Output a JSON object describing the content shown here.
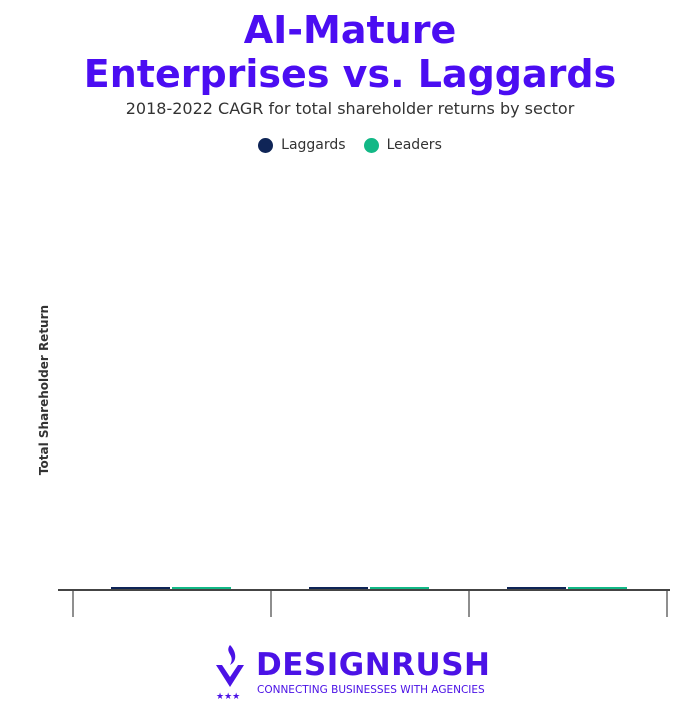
{
  "chart_data": {
    "type": "bar",
    "title_line1": "AI-Mature",
    "title_line2": "Enterprises vs. Laggards",
    "subtitle": "2018-2022 CAGR for total shareholder returns by sector",
    "ylabel": "Total Shareholder Return",
    "xlabel": "",
    "categories": [
      "",
      "",
      ""
    ],
    "series": [
      {
        "name": "Laggards",
        "color": "#0f2557",
        "values": [
          0,
          0,
          0
        ]
      },
      {
        "name": "Leaders",
        "color": "#12b886",
        "values": [
          0,
          0,
          0
        ]
      }
    ],
    "legend_position": "top",
    "grid": false
  },
  "logo": {
    "brand": "DESIGNRUSH",
    "tagline": "CONNECTING BUSINESSES WITH AGENCIES"
  }
}
